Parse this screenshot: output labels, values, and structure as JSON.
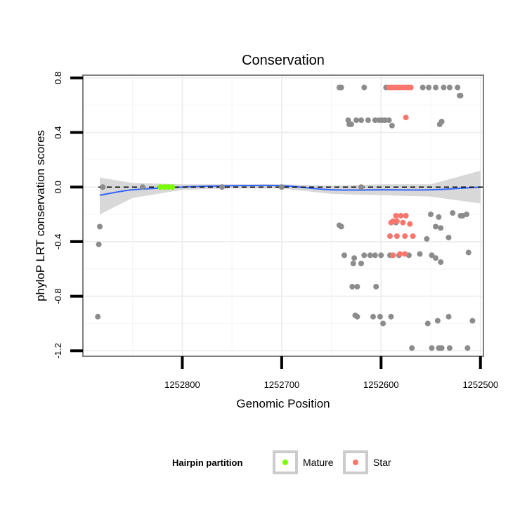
{
  "chart_data": {
    "type": "scatter",
    "title": "Conservation",
    "xlabel": "Genomic Position",
    "ylabel": "phyloP LRT conservation scores",
    "xlim": [
      1252900,
      1252497
    ],
    "ylim": [
      -1.24,
      0.82
    ],
    "x_reversed": true,
    "x_ticks": [
      1252800,
      1252700,
      1252600,
      1252500
    ],
    "x_tick_labels": [
      "1252800",
      "1252700",
      "1252600",
      "1252500"
    ],
    "y_ticks": [
      0.8,
      0.4,
      0.0,
      -0.4,
      -0.8,
      -1.2
    ],
    "y_tick_labels": [
      "0.8",
      "0.4",
      "0.0",
      "-0.4",
      "-0.8",
      "-1.2"
    ],
    "reference_line": {
      "y": 0.0,
      "style": "dashed",
      "color": "#000000"
    },
    "legend": {
      "title": "Hairpin partition",
      "position": "bottom",
      "entries": [
        {
          "label": "Mature",
          "color": "#7cfc00"
        },
        {
          "label": "Star",
          "color": "#f8766d"
        }
      ]
    },
    "colors": {
      "other": "#8c8c8c",
      "mature": "#7cfc00",
      "star": "#f8766d",
      "smooth": "#3366ff",
      "ribbon": "#c8c8c8"
    },
    "smooth_line": {
      "x": [
        1252883,
        1252850,
        1252800,
        1252750,
        1252700,
        1252650,
        1252600,
        1252550,
        1252500
      ],
      "y": [
        -0.06,
        -0.02,
        0.0,
        0.01,
        0.01,
        -0.02,
        -0.02,
        -0.02,
        0.0
      ]
    },
    "confidence_band": {
      "x": [
        1252883,
        1252850,
        1252800,
        1252750,
        1252700,
        1252650,
        1252600,
        1252550,
        1252500
      ],
      "upper": [
        0.07,
        0.03,
        0.02,
        0.02,
        0.02,
        0.01,
        0.02,
        0.02,
        0.12
      ],
      "lower": [
        -0.2,
        -0.08,
        -0.02,
        -0.01,
        -0.01,
        -0.05,
        -0.06,
        -0.07,
        -0.12
      ]
    },
    "series": [
      {
        "name": "Other",
        "color": "#8c8c8c",
        "x": [
          1252885,
          1252884,
          1252883,
          1252642,
          1252640,
          1252617,
          1252595,
          1252589,
          1252558,
          1252552,
          1252545,
          1252537,
          1252531,
          1252523,
          1252521,
          1252520,
          1252633,
          1252632,
          1252630,
          1252625,
          1252620,
          1252613,
          1252606,
          1252602,
          1252599,
          1252596,
          1252592,
          1252589,
          1252541,
          1252539,
          1252620,
          1252700,
          1252760,
          1252840,
          1252880,
          1252642,
          1252640,
          1252585,
          1252550,
          1252542,
          1252528,
          1252520,
          1252518,
          1252514,
          1252637,
          1252628,
          1252627,
          1252620,
          1252617,
          1252611,
          1252606,
          1252600,
          1252591,
          1252582,
          1252572,
          1252561,
          1252554,
          1252549,
          1252545,
          1252540,
          1252532,
          1252512,
          1252629,
          1252624,
          1252605,
          1252545,
          1252540,
          1252626,
          1252624,
          1252608,
          1252601,
          1252590,
          1252543,
          1252508,
          1252598,
          1252553,
          1252532,
          1252569,
          1252549,
          1252542,
          1252541,
          1252539,
          1252531,
          1252513
        ],
        "y": [
          -0.95,
          -0.42,
          -0.29,
          0.73,
          0.73,
          0.73,
          0.73,
          0.73,
          0.73,
          0.73,
          0.73,
          0.73,
          0.73,
          0.73,
          0.67,
          0.67,
          0.49,
          0.46,
          0.46,
          0.49,
          0.49,
          0.49,
          0.49,
          0.49,
          0.49,
          0.49,
          0.49,
          0.45,
          0.46,
          0.48,
          0.0,
          0.0,
          0.0,
          0.0,
          0.0,
          -0.28,
          -0.29,
          -0.26,
          -0.2,
          -0.22,
          -0.19,
          -0.21,
          -0.21,
          -0.2,
          -0.5,
          -0.56,
          -0.52,
          -0.56,
          -0.5,
          -0.5,
          -0.5,
          -0.5,
          -0.5,
          -0.5,
          -0.5,
          -0.49,
          -0.38,
          -0.5,
          -0.52,
          -0.55,
          -0.37,
          -0.48,
          -0.73,
          -0.73,
          -0.73,
          -0.29,
          -0.3,
          -0.94,
          -0.95,
          -0.95,
          -0.95,
          -0.95,
          -0.98,
          -0.98,
          -1.0,
          -1.0,
          -0.95,
          -1.18,
          -1.18,
          -1.18,
          -1.18,
          -1.18,
          -1.18,
          -1.18
        ]
      },
      {
        "name": "Mature",
        "color": "#7cfc00",
        "x": [
          1252822,
          1252818,
          1252814,
          1252810
        ],
        "y": [
          0.0,
          0.0,
          0.0,
          0.0
        ]
      },
      {
        "name": "Star",
        "color": "#f8766d",
        "x": [
          1252592,
          1252589,
          1252586,
          1252584,
          1252581,
          1252578,
          1252575,
          1252573,
          1252570,
          1252575,
          1252585,
          1252580,
          1252575,
          1252590,
          1252588,
          1252584,
          1252578,
          1252571,
          1252591,
          1252584,
          1252576,
          1252568,
          1252588,
          1252581,
          1252576
        ],
        "y": [
          0.73,
          0.73,
          0.73,
          0.73,
          0.73,
          0.73,
          0.73,
          0.73,
          0.73,
          0.51,
          -0.21,
          -0.21,
          -0.21,
          -0.26,
          -0.25,
          -0.25,
          -0.26,
          -0.27,
          -0.36,
          -0.36,
          -0.36,
          -0.36,
          -0.5,
          -0.49,
          -0.49
        ]
      }
    ]
  }
}
